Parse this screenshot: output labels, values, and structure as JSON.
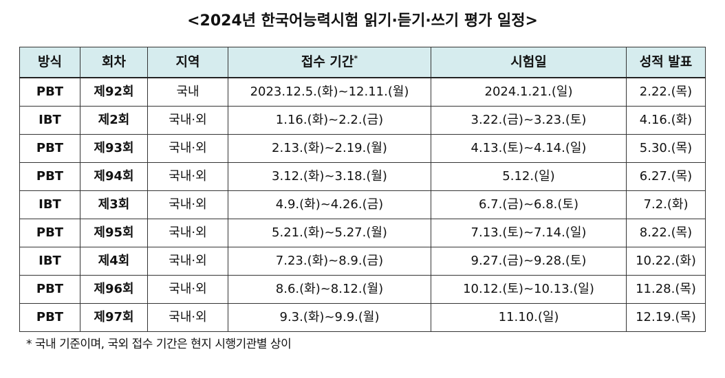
{
  "title": "<2024년 한국어능력시험 읽기·듣기·쓰기 평가 일정>",
  "table": {
    "headers": {
      "method": "방식",
      "round": "회차",
      "region": "지역",
      "reception": "접수 기간",
      "reception_mark": "*",
      "exam_date": "시험일",
      "result": "성적 발표"
    },
    "rows": [
      {
        "method": "PBT",
        "round": "제92회",
        "region": "국내",
        "reception": "2023.12.5.(화)~12.11.(월)",
        "exam_date": "2024.1.21.(일)",
        "result": "2.22.(목)"
      },
      {
        "method": "IBT",
        "round": "제2회",
        "region": "국내·외",
        "reception": "1.16.(화)~2.2.(금)",
        "exam_date": "3.22.(금)~3.23.(토)",
        "result": "4.16.(화)"
      },
      {
        "method": "PBT",
        "round": "제93회",
        "region": "국내·외",
        "reception": "2.13.(화)~2.19.(월)",
        "exam_date": "4.13.(토)~4.14.(일)",
        "result": "5.30.(목)"
      },
      {
        "method": "PBT",
        "round": "제94회",
        "region": "국내·외",
        "reception": "3.12.(화)~3.18.(월)",
        "exam_date": "5.12.(일)",
        "result": "6.27.(목)"
      },
      {
        "method": "IBT",
        "round": "제3회",
        "region": "국내·외",
        "reception": "4.9.(화)~4.26.(금)",
        "exam_date": "6.7.(금)~6.8.(토)",
        "result": "7.2.(화)"
      },
      {
        "method": "PBT",
        "round": "제95회",
        "region": "국내·외",
        "reception": "5.21.(화)~5.27.(월)",
        "exam_date": "7.13.(토)~7.14.(일)",
        "result": "8.22.(목)"
      },
      {
        "method": "IBT",
        "round": "제4회",
        "region": "국내·외",
        "reception": "7.23.(화)~8.9.(금)",
        "exam_date": "9.27.(금)~9.28.(토)",
        "result": "10.22.(화)"
      },
      {
        "method": "PBT",
        "round": "제96회",
        "region": "국내·외",
        "reception": "8.6.(화)~8.12.(월)",
        "exam_date": "10.12.(토)~10.13.(일)",
        "result": "11.28.(목)"
      },
      {
        "method": "PBT",
        "round": "제97회",
        "region": "국내·외",
        "reception": "9.3.(화)~9.9.(월)",
        "exam_date": "11.10.(일)",
        "result": "12.19.(목)"
      }
    ]
  },
  "footnote": "* 국내 기준이며, 국외 접수 기간은 현지 시행기관별 상이"
}
